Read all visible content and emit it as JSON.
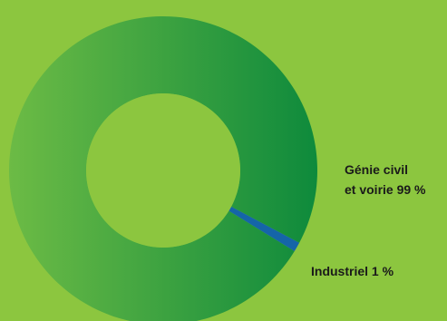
{
  "chart_data": {
    "type": "pie",
    "variant": "donut",
    "slices": [
      {
        "label_lines": [
          "Génie civil",
          "et voirie 99 %"
        ],
        "value": 99,
        "color_start": "#6cbb45",
        "color_end": "#0e8a3c"
      },
      {
        "label_lines": [
          "Industriel 1 %"
        ],
        "value": 1,
        "color_start": "#1565a8",
        "color_end": "#1565a8"
      }
    ],
    "background_color": "#8cc63f",
    "hole_color": "#8cc63f"
  }
}
